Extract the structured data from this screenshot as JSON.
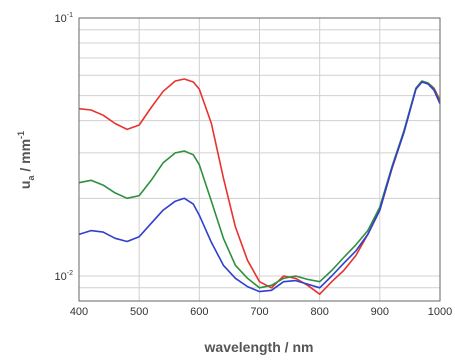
{
  "chart_data": {
    "type": "line",
    "title": "",
    "xlabel": "wavelength / nm",
    "ylabel": "u_a / mm^-1",
    "ylabel_parts": {
      "main": "u",
      "sub": "a",
      "unit": " / mm",
      "sup": "-1"
    },
    "xlim": [
      400,
      1000
    ],
    "ylim": [
      0.008,
      0.1
    ],
    "yscale": "log",
    "grid": true,
    "legend": "none",
    "x_ticks": [
      400,
      500,
      600,
      700,
      800,
      900,
      1000
    ],
    "x_tick_labels": [
      "400",
      "500",
      "600",
      "700",
      "800",
      "900",
      "1000"
    ],
    "y_ticks": [
      {
        "value": 0.1,
        "base": "10",
        "exp": "-1"
      },
      {
        "value": 0.01,
        "base": "10",
        "exp": "-2"
      }
    ],
    "series": [
      {
        "color": "#e8322f",
        "x": [
          400,
          420,
          440,
          460,
          480,
          500,
          520,
          540,
          560,
          575,
          590,
          600,
          620,
          640,
          660,
          680,
          700,
          720,
          740,
          760,
          780,
          800,
          820,
          840,
          860,
          880,
          900,
          920,
          940,
          960,
          970,
          980,
          990,
          1000
        ],
        "y": [
          0.0445,
          0.044,
          0.042,
          0.039,
          0.037,
          0.0385,
          0.045,
          0.052,
          0.057,
          0.058,
          0.0565,
          0.053,
          0.039,
          0.024,
          0.0155,
          0.0115,
          0.0095,
          0.009,
          0.01,
          0.0098,
          0.0092,
          0.0085,
          0.0095,
          0.0105,
          0.012,
          0.0145,
          0.018,
          0.026,
          0.036,
          0.053,
          0.0565,
          0.056,
          0.0535,
          0.048
        ]
      },
      {
        "color": "#2f8f3f",
        "x": [
          400,
          420,
          440,
          460,
          480,
          500,
          520,
          540,
          560,
          575,
          590,
          600,
          620,
          640,
          660,
          680,
          700,
          720,
          740,
          760,
          780,
          800,
          820,
          840,
          860,
          880,
          900,
          920,
          940,
          960,
          970,
          980,
          990,
          1000
        ],
        "y": [
          0.023,
          0.0235,
          0.0225,
          0.021,
          0.02,
          0.0205,
          0.0235,
          0.0275,
          0.03,
          0.0305,
          0.0295,
          0.027,
          0.0195,
          0.014,
          0.011,
          0.0098,
          0.009,
          0.0092,
          0.0098,
          0.01,
          0.0097,
          0.0095,
          0.0105,
          0.0118,
          0.0132,
          0.015,
          0.0185,
          0.0265,
          0.0365,
          0.0535,
          0.057,
          0.056,
          0.053,
          0.047
        ]
      },
      {
        "color": "#2f3fcf",
        "x": [
          400,
          420,
          440,
          460,
          480,
          500,
          520,
          540,
          560,
          575,
          590,
          600,
          620,
          640,
          660,
          680,
          700,
          720,
          740,
          760,
          780,
          800,
          820,
          840,
          860,
          880,
          900,
          920,
          940,
          960,
          970,
          980,
          990,
          1000
        ],
        "y": [
          0.0145,
          0.015,
          0.0148,
          0.014,
          0.0136,
          0.0142,
          0.016,
          0.018,
          0.0195,
          0.02,
          0.019,
          0.0172,
          0.0135,
          0.011,
          0.0098,
          0.0091,
          0.0087,
          0.0088,
          0.0095,
          0.0096,
          0.0093,
          0.009,
          0.01,
          0.0112,
          0.0125,
          0.0145,
          0.018,
          0.0262,
          0.036,
          0.053,
          0.0565,
          0.0555,
          0.0525,
          0.0465
        ]
      }
    ]
  }
}
